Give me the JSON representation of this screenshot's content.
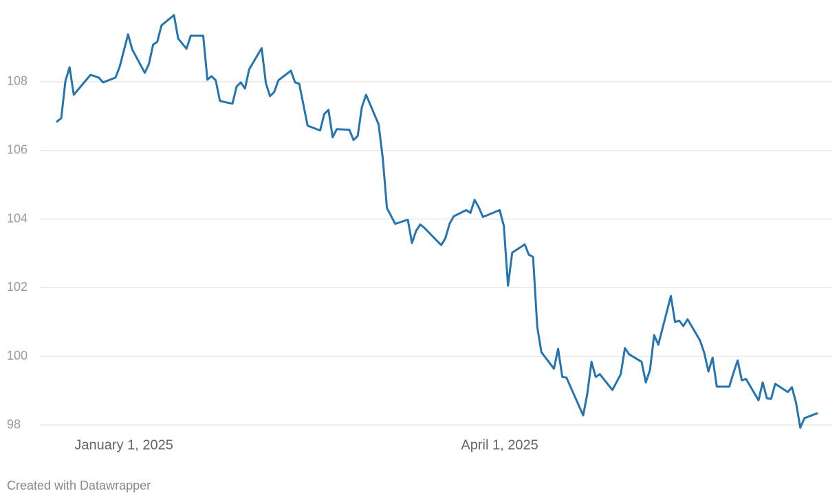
{
  "chart_data": {
    "type": "line",
    "footer": "Created with Datawrapper",
    "color": "#2474b0",
    "grid": true,
    "xlim": [
      "2024-12-16",
      "2025-06-16"
    ],
    "xticks": [
      {
        "value": "2025-01-01",
        "label": "January 1, 2025"
      },
      {
        "value": "2025-04-01",
        "label": "April 1, 2025"
      }
    ],
    "ylim": [
      97.7,
      110.1
    ],
    "yticks": [
      98,
      100,
      102,
      104,
      106,
      108
    ],
    "x": [
      "2024-12-16",
      "2024-12-17",
      "2024-12-18",
      "2024-12-19",
      "2024-12-20",
      "2024-12-24",
      "2024-12-26",
      "2024-12-27",
      "2024-12-30",
      "2024-12-31",
      "2025-01-02",
      "2025-01-03",
      "2025-01-06",
      "2025-01-07",
      "2025-01-08",
      "2025-01-09",
      "2025-01-10",
      "2025-01-13",
      "2025-01-14",
      "2025-01-16",
      "2025-01-17",
      "2025-01-20",
      "2025-01-21",
      "2025-01-22",
      "2025-01-23",
      "2025-01-24",
      "2025-01-27",
      "2025-01-28",
      "2025-01-29",
      "2025-01-30",
      "2025-01-31",
      "2025-02-03",
      "2025-02-04",
      "2025-02-05",
      "2025-02-06",
      "2025-02-07",
      "2025-02-10",
      "2025-02-11",
      "2025-02-12",
      "2025-02-14",
      "2025-02-17",
      "2025-02-18",
      "2025-02-19",
      "2025-02-20",
      "2025-02-21",
      "2025-02-24",
      "2025-02-25",
      "2025-02-26",
      "2025-02-27",
      "2025-02-28",
      "2025-03-03",
      "2025-03-04",
      "2025-03-05",
      "2025-03-07",
      "2025-03-10",
      "2025-03-11",
      "2025-03-12",
      "2025-03-13",
      "2025-03-14",
      "2025-03-18",
      "2025-03-19",
      "2025-03-20",
      "2025-03-21",
      "2025-03-24",
      "2025-03-25",
      "2025-03-26",
      "2025-03-27",
      "2025-03-28",
      "2025-04-01",
      "2025-04-02",
      "2025-04-03",
      "2025-04-04",
      "2025-04-07",
      "2025-04-08",
      "2025-04-09",
      "2025-04-10",
      "2025-04-11",
      "2025-04-14",
      "2025-04-15",
      "2025-04-16",
      "2025-04-17",
      "2025-04-21",
      "2025-04-22",
      "2025-04-23",
      "2025-04-24",
      "2025-04-25",
      "2025-04-28",
      "2025-04-30",
      "2025-05-01",
      "2025-05-02",
      "2025-05-05",
      "2025-05-06",
      "2025-05-07",
      "2025-05-08",
      "2025-05-09",
      "2025-05-12",
      "2025-05-13",
      "2025-05-14",
      "2025-05-15",
      "2025-05-16",
      "2025-05-19",
      "2025-05-20",
      "2025-05-21",
      "2025-05-22",
      "2025-05-23",
      "2025-05-26",
      "2025-05-27",
      "2025-05-28",
      "2025-05-29",
      "2025-05-30",
      "2025-06-02",
      "2025-06-03",
      "2025-06-04",
      "2025-06-05",
      "2025-06-06",
      "2025-06-09",
      "2025-06-10",
      "2025-06-11",
      "2025-06-12",
      "2025-06-13",
      "2025-06-16"
    ],
    "values": [
      106.84,
      106.94,
      108.02,
      108.42,
      107.62,
      108.2,
      108.12,
      107.98,
      108.12,
      108.44,
      109.38,
      108.94,
      108.26,
      108.52,
      109.08,
      109.16,
      109.64,
      109.94,
      109.26,
      108.96,
      109.34,
      109.34,
      108.06,
      108.16,
      108.04,
      107.44,
      107.36,
      107.86,
      107.98,
      107.8,
      108.36,
      108.98,
      107.96,
      107.58,
      107.7,
      108.04,
      108.32,
      107.98,
      107.94,
      106.72,
      106.58,
      107.06,
      107.18,
      106.38,
      106.62,
      106.6,
      106.3,
      106.42,
      107.26,
      107.62,
      106.76,
      105.78,
      104.32,
      103.86,
      103.98,
      103.3,
      103.66,
      103.84,
      103.74,
      103.24,
      103.44,
      103.86,
      104.08,
      104.26,
      104.18,
      104.56,
      104.34,
      104.06,
      104.26,
      103.8,
      102.06,
      103.02,
      103.26,
      102.96,
      102.9,
      100.86,
      100.12,
      99.64,
      100.22,
      99.4,
      99.38,
      98.28,
      98.92,
      99.84,
      99.4,
      99.48,
      99.02,
      99.48,
      100.24,
      100.06,
      99.84,
      99.24,
      99.6,
      100.62,
      100.34,
      101.76,
      101.0,
      101.04,
      100.88,
      101.08,
      100.46,
      100.1,
      99.56,
      99.96,
      99.12,
      99.12,
      99.52,
      99.88,
      99.3,
      99.34,
      98.72,
      99.24,
      98.78,
      98.76,
      99.2,
      98.96,
      99.1,
      98.64,
      97.92,
      98.2,
      98.34
    ]
  }
}
